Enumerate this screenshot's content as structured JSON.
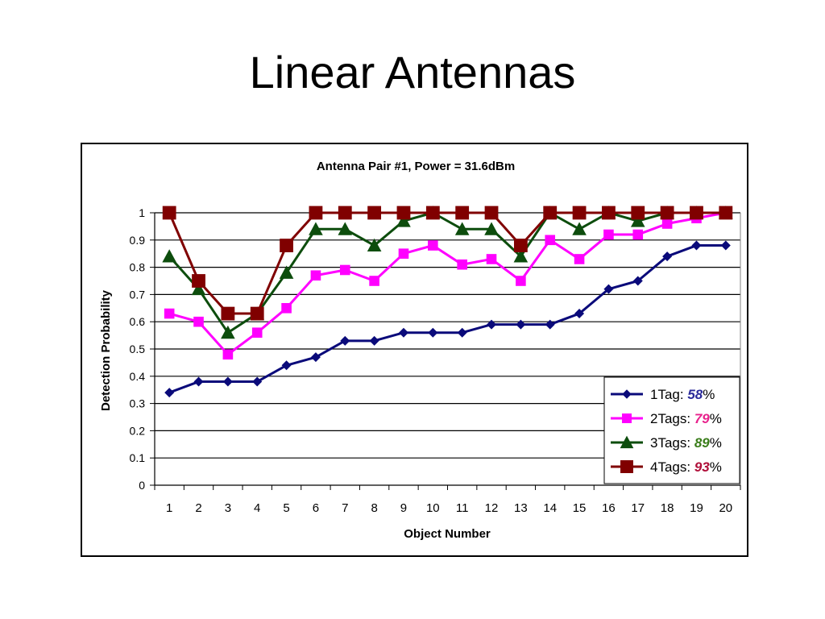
{
  "slide": {
    "title": "Linear Antennas"
  },
  "chart_data": {
    "type": "line",
    "title": "Antenna Pair #1, Power = 31.6dBm",
    "xlabel": "Object Number",
    "ylabel": "Detection Probability",
    "ylim": [
      0,
      1
    ],
    "yticks": [
      "0",
      "0.1",
      "0.2",
      "0.3",
      "0.4",
      "0.5",
      "0.6",
      "0.7",
      "0.8",
      "0.9",
      "1"
    ],
    "categories": [
      "1",
      "2",
      "3",
      "4",
      "5",
      "6",
      "7",
      "8",
      "9",
      "10",
      "11",
      "12",
      "13",
      "14",
      "15",
      "16",
      "17",
      "18",
      "19",
      "20"
    ],
    "grid": true,
    "legend_position": "bottom-right",
    "series": [
      {
        "name": "1Tag:",
        "pct": "58",
        "pct_suffix": "%",
        "color": "#0a0a7a",
        "pct_color": "#2a2a9a",
        "marker": "diamond",
        "values": [
          0.34,
          0.38,
          0.38,
          0.38,
          0.44,
          0.47,
          0.53,
          0.53,
          0.56,
          0.56,
          0.56,
          0.59,
          0.59,
          0.59,
          0.63,
          0.72,
          0.75,
          0.84,
          0.88,
          0.88
        ]
      },
      {
        "name": "2Tags:",
        "pct": "79",
        "pct_suffix": "%",
        "color": "#ff00ff",
        "pct_color": "#e8228c",
        "marker": "square",
        "values": [
          0.63,
          0.6,
          0.48,
          0.56,
          0.65,
          0.77,
          0.79,
          0.75,
          0.85,
          0.88,
          0.81,
          0.83,
          0.75,
          0.9,
          0.83,
          0.92,
          0.92,
          0.96,
          0.98,
          1.0
        ]
      },
      {
        "name": "3Tags:",
        "pct": "89",
        "pct_suffix": "%",
        "color": "#0d4d0d",
        "pct_color": "#3a7d1a",
        "marker": "triangle",
        "values": [
          0.84,
          0.72,
          0.56,
          0.63,
          0.78,
          0.94,
          0.94,
          0.88,
          0.97,
          1.0,
          0.94,
          0.94,
          0.84,
          1.0,
          0.94,
          1.0,
          0.97,
          1.0,
          1.0,
          1.0
        ]
      },
      {
        "name": "4Tags:",
        "pct": "93",
        "pct_suffix": "%",
        "color": "#800000",
        "pct_color": "#b0103a",
        "marker": "square",
        "values": [
          1.0,
          0.75,
          0.63,
          0.63,
          0.88,
          1.0,
          1.0,
          1.0,
          1.0,
          1.0,
          1.0,
          1.0,
          0.88,
          1.0,
          1.0,
          1.0,
          1.0,
          1.0,
          1.0,
          1.0
        ]
      }
    ]
  }
}
